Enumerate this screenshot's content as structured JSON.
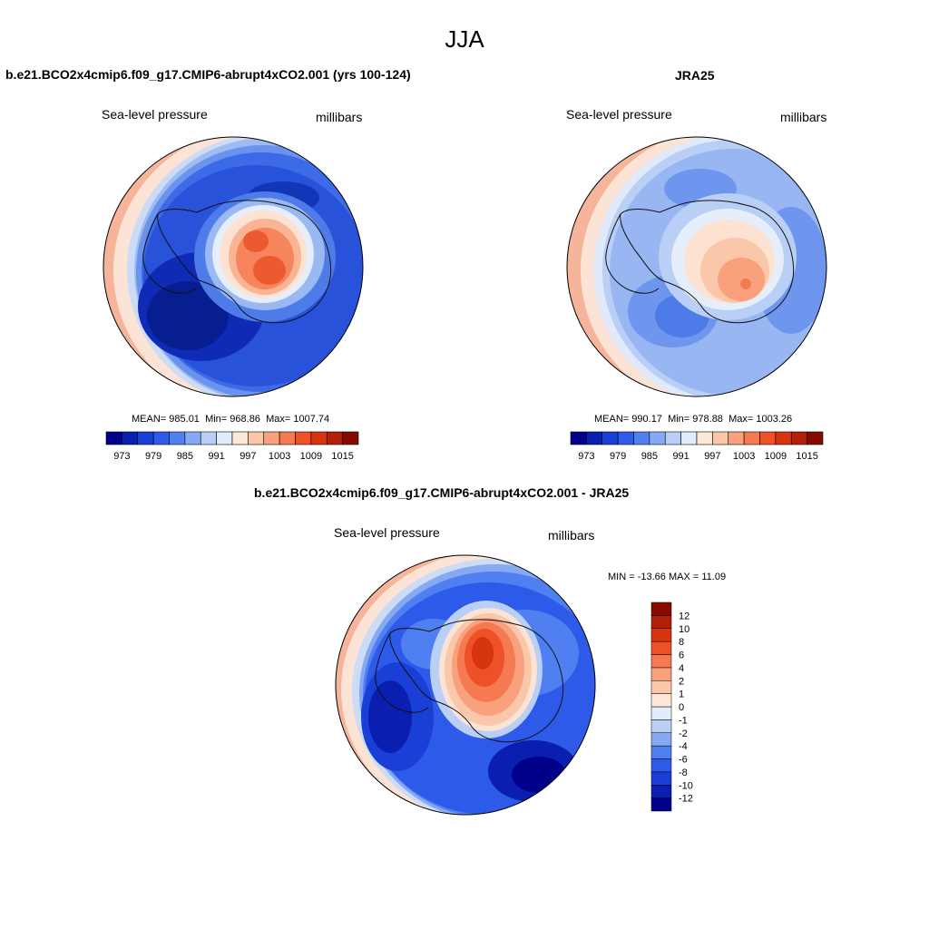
{
  "title": "JJA",
  "panels": {
    "model": {
      "title": "b.e21.BCO2x4cmip6.f09_g17.CMIP6-abrupt4xCO2.001 (yrs 100-124)",
      "variable": "Sea-level pressure",
      "units": "millibars",
      "mean_label": "MEAN=",
      "mean": "985.01",
      "min_label": "Min=",
      "min": "968.86",
      "max_label": "Max=",
      "max": "1007.74"
    },
    "obs": {
      "title": "JRA25",
      "variable": "Sea-level pressure",
      "units": "millibars",
      "mean_label": "MEAN=",
      "mean": "990.17",
      "min_label": "Min=",
      "min": "978.88",
      "max_label": "Max=",
      "max": "1003.26"
    },
    "diff": {
      "title": "b.e21.BCO2x4cmip6.f09_g17.CMIP6-abrupt4xCO2.001 - JRA25",
      "variable": "Sea-level pressure",
      "units": "millibars",
      "min_label": "MIN =",
      "min": "-13.66",
      "max_label": "MAX =",
      "max": "11.09"
    }
  },
  "colorbars": {
    "absolute": {
      "colors": [
        "#00008b",
        "#0a1fb0",
        "#1a3fd6",
        "#2d5ae8",
        "#4f7ff0",
        "#86a9f2",
        "#b9cff6",
        "#e2ecfa",
        "#fde7d6",
        "#fbc7aa",
        "#f9a07d",
        "#f57a52",
        "#ee5128",
        "#d63510",
        "#b22008",
        "#870a00"
      ],
      "tick_labels": [
        "973",
        "979",
        "985",
        "991",
        "997",
        "1003",
        "1009",
        "1015"
      ]
    },
    "difference": {
      "colors": [
        "#00008b",
        "#0a1fb0",
        "#1a3fd6",
        "#2d5ae8",
        "#4f7ff0",
        "#86a9f2",
        "#b9cff6",
        "#e2ecfa",
        "#fde7d6",
        "#fbc7aa",
        "#f9a07d",
        "#f57a52",
        "#ee5128",
        "#d63510",
        "#b22008",
        "#870a00"
      ],
      "tick_labels": [
        "-12",
        "-10",
        "-8",
        "-6",
        "-4",
        "-2",
        "-1",
        "0",
        "1",
        "2",
        "4",
        "6",
        "8",
        "10",
        "12"
      ]
    }
  }
}
